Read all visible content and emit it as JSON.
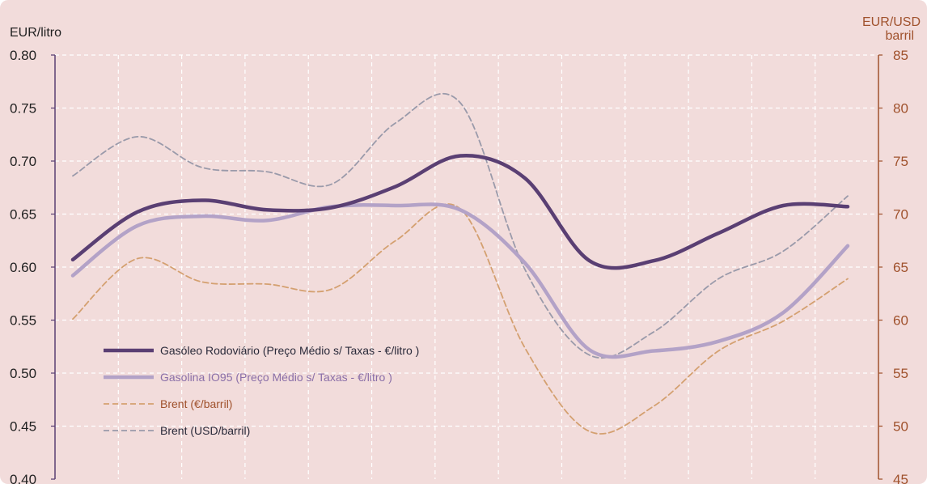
{
  "chart_data": {
    "type": "line",
    "title": "",
    "ylabel_left": "EUR/litro",
    "ylabel_right": "EUR/USD barril",
    "ylim_left": [
      0.4,
      0.8
    ],
    "ylim_right": [
      45,
      85
    ],
    "yticks_left": [
      "0.40",
      "0.45",
      "0.50",
      "0.55",
      "0.60",
      "0.65",
      "0.70",
      "0.75",
      "0.80"
    ],
    "yticks_right": [
      "45",
      "50",
      "55",
      "60",
      "65",
      "70",
      "75",
      "80",
      "85"
    ],
    "grid": true,
    "legend_position": "lower-left",
    "n_points": 13,
    "series": [
      {
        "name": "Gasóleo Rodoviário (Preço Médio s/ Taxas - €/litro )",
        "axis": "left",
        "style": "solid-thick",
        "color": "#5a3f73",
        "values": [
          0.607,
          0.652,
          0.663,
          0.654,
          0.656,
          0.676,
          0.705,
          0.684,
          0.606,
          0.606,
          0.632,
          0.658,
          0.657
        ]
      },
      {
        "name": "Gasolina IO95 (Preço Médio s/ Taxas - €/litro )",
        "axis": "left",
        "style": "solid-thick",
        "color": "#b3a2c7",
        "values": [
          0.592,
          0.639,
          0.648,
          0.644,
          0.657,
          0.658,
          0.654,
          0.604,
          0.522,
          0.521,
          0.53,
          0.557,
          0.62
        ]
      },
      {
        "name": "Brent (€/barril)",
        "axis": "right",
        "style": "dashed",
        "color": "#d4a070",
        "values": [
          60.1,
          65.8,
          63.6,
          63.4,
          62.9,
          67.5,
          70.5,
          57.4,
          49.5,
          51.9,
          57.1,
          59.9,
          63.9
        ]
      },
      {
        "name": "Brent (USD/barril)",
        "axis": "right",
        "style": "dashed",
        "color": "#9a9aaa",
        "values": [
          73.6,
          77.3,
          74.4,
          74.0,
          72.8,
          78.6,
          80.5,
          64.8,
          56.7,
          58.9,
          63.9,
          66.5,
          71.7
        ]
      }
    ]
  }
}
